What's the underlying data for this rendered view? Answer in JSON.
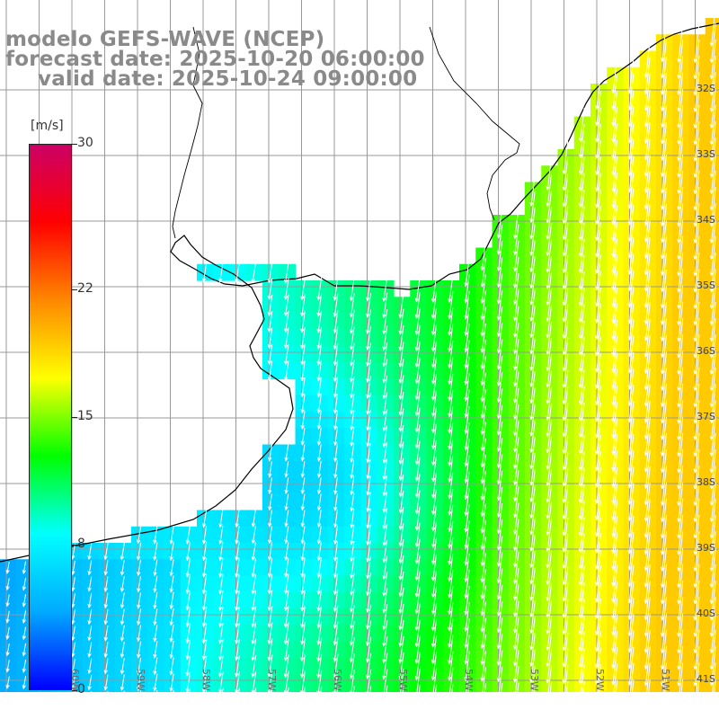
{
  "title": {
    "line1": "modelo GEFS-WAVE (NCEP)",
    "line2": "forecast date: 2025-10-20 06:00:00",
    "line3": "valid date: 2025-10-24 09:00:00"
  },
  "colorbar": {
    "unit": "[m/s]",
    "min": 0,
    "max": 30,
    "ticks": [
      "30",
      "22",
      "15",
      "8",
      "0"
    ],
    "tick_values": [
      30,
      22,
      15,
      8,
      0
    ],
    "colors": [
      "#0000ff",
      "#00aaff",
      "#00ffff",
      "#00ff00",
      "#ffff00",
      "#ff8800",
      "#ff0000",
      "#cc0066"
    ]
  },
  "map": {
    "variable": "wind speed and direction",
    "lat_labels": [
      "32S",
      "33S",
      "34S",
      "35S",
      "36S",
      "37S",
      "38S",
      "39S",
      "40S",
      "41S"
    ],
    "lat_values": [
      -32,
      -33,
      -34,
      -35,
      -36,
      -37,
      -38,
      -39,
      -40,
      -41
    ],
    "lon_labels": [
      "60W",
      "59W",
      "58W",
      "57W",
      "56W",
      "55W",
      "54W",
      "53W",
      "52W",
      "51W"
    ],
    "lon_values": [
      -60,
      -59,
      -58,
      -57,
      -56,
      -55,
      -54,
      -53,
      -52,
      -51
    ],
    "land_color": "#ffffff",
    "grid_color": "#999999",
    "coast_color": "#000000"
  }
}
